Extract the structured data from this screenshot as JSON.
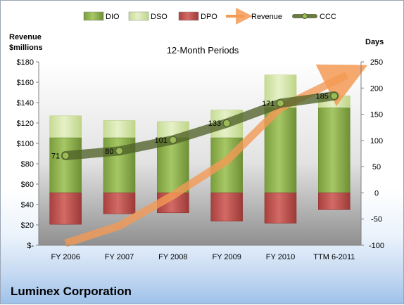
{
  "chart_data": {
    "type": "bar",
    "title": "12-Month Periods",
    "company": "Luminex Corporation",
    "left_axis": {
      "label_line1": "Revenue",
      "label_line2": "$millions",
      "range": [
        0,
        180
      ],
      "ticks": [
        0,
        20,
        40,
        60,
        80,
        100,
        120,
        140,
        160,
        180
      ],
      "tick_labels": [
        "$-",
        "$20",
        "$40",
        "$60",
        "$80",
        "$100",
        "$120",
        "$140",
        "$160",
        "$180"
      ]
    },
    "right_axis": {
      "label": "Days",
      "range": [
        -100,
        250
      ],
      "ticks": [
        -100,
        -50,
        0,
        50,
        100,
        150,
        200,
        250
      ],
      "tick_labels": [
        "-100",
        "-50",
        "0",
        "50",
        "100",
        "150",
        "200",
        "250"
      ]
    },
    "categories": [
      "FY 2006",
      "FY 2007",
      "FY 2008",
      "FY 2009",
      "FY 2010",
      "TTM 6-2011"
    ],
    "series": [
      {
        "name": "DIO",
        "axis": "right",
        "kind": "stacked-bar",
        "values": [
          105,
          105,
          105,
          105,
          162,
          162
        ],
        "color": "#8db04a"
      },
      {
        "name": "DSO",
        "axis": "right",
        "kind": "stacked-bar",
        "values": [
          42,
          33,
          31,
          53,
          63,
          23
        ],
        "color": "#d5e8ab"
      },
      {
        "name": "DPO",
        "axis": "right",
        "kind": "negative-bar",
        "values": [
          -60,
          -40,
          -38,
          -54,
          -58,
          -32
        ],
        "color": "#c0504d"
      },
      {
        "name": "Revenue",
        "axis": "left",
        "kind": "arrow",
        "values": [
          2,
          19,
          49,
          83,
          135,
          167
        ],
        "color": "#f39a55"
      },
      {
        "name": "CCC",
        "axis": "right",
        "kind": "line",
        "values": [
          71,
          80,
          101,
          133,
          171,
          185
        ],
        "color": "#4f6228"
      }
    ],
    "data_labels": [
      "71",
      "80",
      "101",
      "133",
      "171",
      "185"
    ],
    "legend": [
      "DIO",
      "DSO",
      "DPO",
      "Revenue",
      "CCC"
    ],
    "legend_position": "top",
    "grid": false
  }
}
